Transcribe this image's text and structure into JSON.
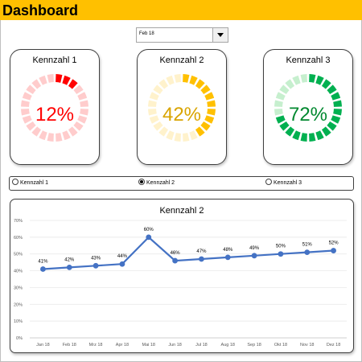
{
  "app": {
    "title": "Dashboard"
  },
  "month_select": {
    "value": "Feb 18"
  },
  "kpis": [
    {
      "name": "Kennzahl 1",
      "value": 0.12,
      "label": "12%",
      "color": "#ff0000",
      "track": "#ffcccc",
      "text_color": "#ff0000"
    },
    {
      "name": "Kennzahl 2",
      "value": 0.42,
      "label": "42%",
      "color": "#ffc000",
      "track": "#fff2cc",
      "text_color": "#d9a400"
    },
    {
      "name": "Kennzahl 3",
      "value": 0.72,
      "label": "72%",
      "color": "#00b050",
      "track": "#c6efce",
      "text_color": "#00882f"
    }
  ],
  "selector": {
    "options": [
      "Kennzahl 1",
      "Kennzahl 2",
      "Kennzahl 3"
    ],
    "selected": "Kennzahl 2"
  },
  "chart_data": {
    "type": "line",
    "title": "Kennzahl 2",
    "categories": [
      "Jan 18",
      "Feb 18",
      "Mrz 18",
      "Apr 18",
      "Mai 18",
      "Jun 18",
      "Jul 18",
      "Aug 18",
      "Sep 18",
      "Okt 18",
      "Nov 18",
      "Dez 18"
    ],
    "series": [
      {
        "values": [
          41,
          42,
          43,
          44,
          60,
          46,
          47,
          48,
          49,
          50,
          51,
          52
        ],
        "color": "#4472c4"
      }
    ],
    "data_labels": [
      "41%",
      "42%",
      "43%",
      "44%",
      "60%",
      "46%",
      "47%",
      "48%",
      "49%",
      "50%",
      "51%",
      "52%"
    ],
    "y_ticks": [
      "0%",
      "10%",
      "20%",
      "30%",
      "40%",
      "50%",
      "60%",
      "70%"
    ],
    "ylim": [
      0,
      70
    ],
    "grid": true,
    "xlabel": "",
    "ylabel": ""
  }
}
